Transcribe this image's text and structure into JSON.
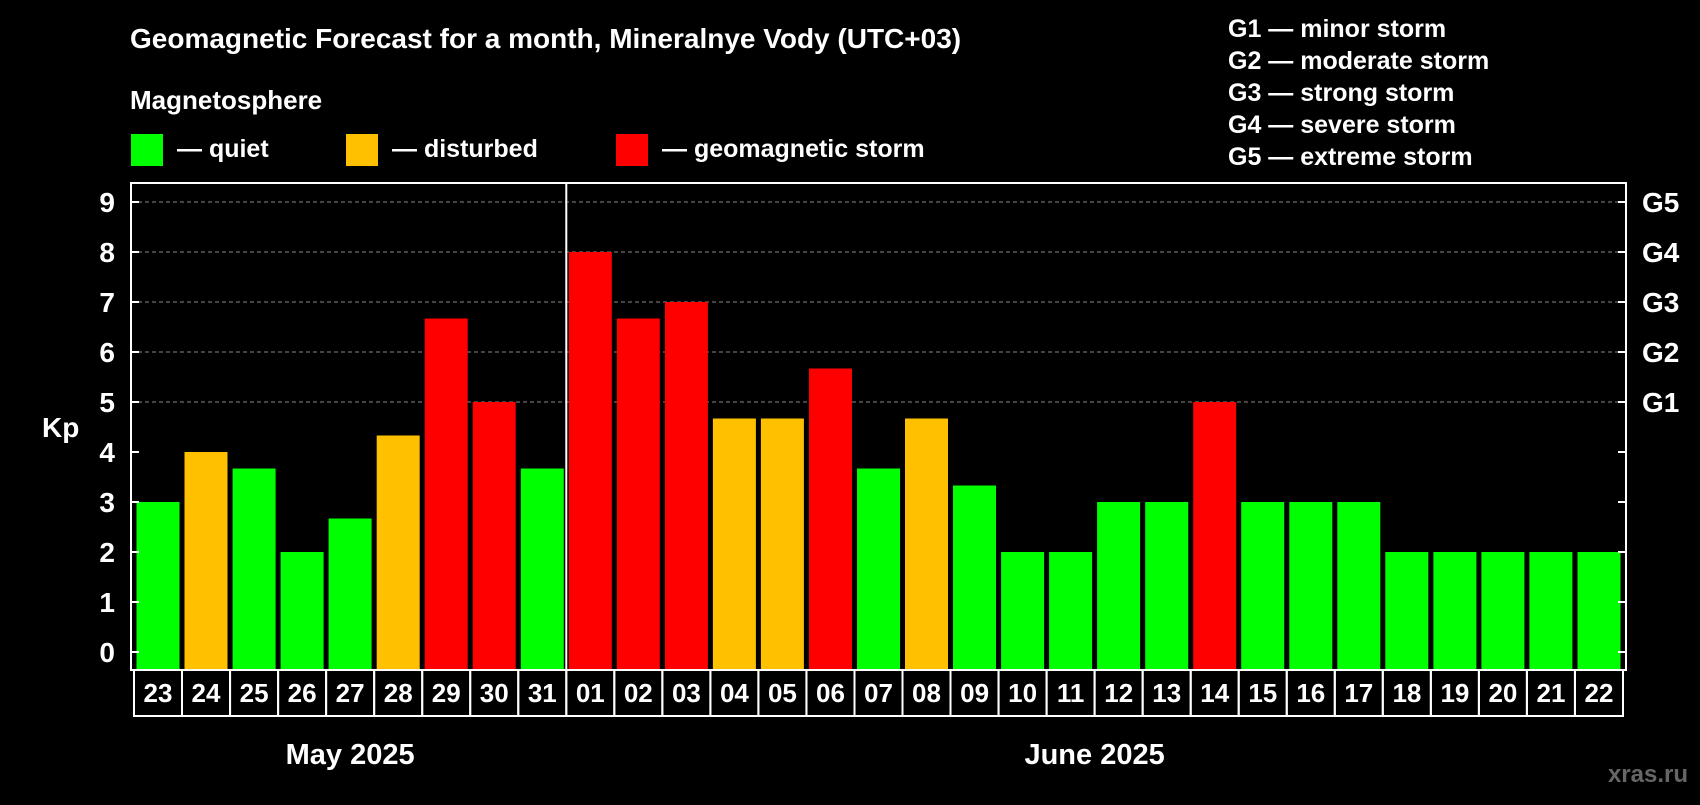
{
  "chart_data": {
    "type": "bar",
    "title": "Geomagnetic Forecast for a month, Mineralnye Vody (UTC+03)",
    "ylabel": "Kp",
    "ylim": [
      0,
      9
    ],
    "yticks": [
      "0",
      "1",
      "2",
      "3",
      "4",
      "5",
      "6",
      "7",
      "8",
      "9"
    ],
    "right_axis": {
      "ticks": [
        {
          "value": 5,
          "label": "G1"
        },
        {
          "value": 6,
          "label": "G2"
        },
        {
          "value": 7,
          "label": "G3"
        },
        {
          "value": 8,
          "label": "G4"
        },
        {
          "value": 9,
          "label": "G5"
        }
      ]
    },
    "legend": {
      "title": "Magnetosphere",
      "items": [
        {
          "label": "— quiet",
          "color": "#00ff00",
          "key": "quiet"
        },
        {
          "label": "— disturbed",
          "color": "#ffc000",
          "key": "disturbed"
        },
        {
          "label": "— geomagnetic storm",
          "color": "#ff0000",
          "key": "storm"
        }
      ]
    },
    "storm_scale": [
      "G1 — minor storm",
      "G2 — moderate storm",
      "G3 — strong storm",
      "G4 — severe storm",
      "G5 — extreme storm"
    ],
    "months": [
      {
        "label": "May 2025",
        "start_index": 0,
        "count": 9
      },
      {
        "label": "June 2025",
        "start_index": 9,
        "count": 22
      }
    ],
    "categories": [
      "23",
      "24",
      "25",
      "26",
      "27",
      "28",
      "29",
      "30",
      "31",
      "01",
      "02",
      "03",
      "04",
      "05",
      "06",
      "07",
      "08",
      "09",
      "10",
      "11",
      "12",
      "13",
      "14",
      "15",
      "16",
      "17",
      "18",
      "19",
      "20",
      "21",
      "22"
    ],
    "values": [
      3,
      4,
      3.67,
      2,
      2.67,
      4.33,
      6.67,
      5,
      3.67,
      8,
      6.67,
      7,
      4.67,
      4.67,
      5.67,
      3.67,
      4.67,
      3.33,
      2,
      2,
      3,
      3,
      5,
      3,
      3,
      3,
      2,
      2,
      2,
      2,
      2
    ],
    "status": [
      "quiet",
      "disturbed",
      "quiet",
      "quiet",
      "quiet",
      "disturbed",
      "storm",
      "storm",
      "quiet",
      "storm",
      "storm",
      "storm",
      "disturbed",
      "disturbed",
      "storm",
      "quiet",
      "disturbed",
      "quiet",
      "quiet",
      "quiet",
      "quiet",
      "quiet",
      "storm",
      "quiet",
      "quiet",
      "quiet",
      "quiet",
      "quiet",
      "quiet",
      "quiet",
      "quiet"
    ],
    "grid": true
  },
  "watermark": "xras.ru"
}
